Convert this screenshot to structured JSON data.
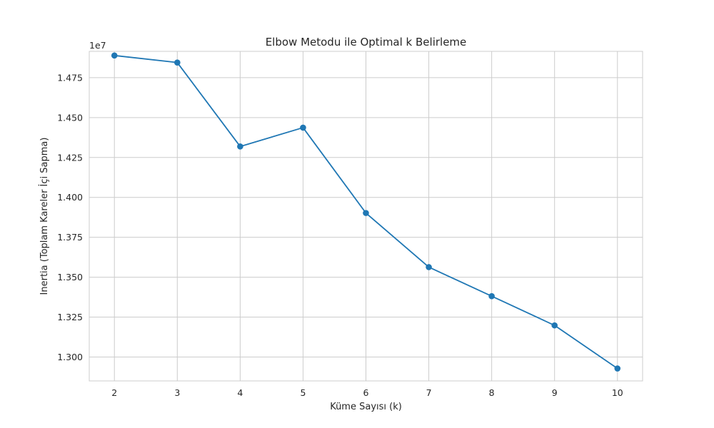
{
  "chart_data": {
    "type": "line",
    "title": "Elbow Metodu ile Optimal k Belirleme",
    "xlabel": "Küme Sayısı (k)",
    "ylabel": "Inertia (Toplam Kareler İçi Sapma)",
    "y_offset_label": "1e7",
    "x": [
      2,
      3,
      4,
      5,
      6,
      7,
      8,
      9,
      10
    ],
    "series": [
      {
        "values": [
          14889000,
          14845000,
          14319000,
          14437000,
          13902000,
          13563000,
          13381000,
          13198000,
          12928000
        ]
      }
    ],
    "xlim": [
      1.6,
      10.4
    ],
    "ylim": [
      12850000,
      14915000
    ],
    "x_ticks": [
      2,
      3,
      4,
      5,
      6,
      7,
      8,
      9,
      10
    ],
    "x_tick_labels": [
      "2",
      "3",
      "4",
      "5",
      "6",
      "7",
      "8",
      "9",
      "10"
    ],
    "y_ticks": [
      13000000,
      13250000,
      13500000,
      13750000,
      14000000,
      14250000,
      14500000,
      14750000
    ],
    "y_tick_labels": [
      "1.300",
      "1.325",
      "1.350",
      "1.375",
      "1.400",
      "1.425",
      "1.450",
      "1.475"
    ],
    "grid": true,
    "marker": "circle",
    "line_color": "#1f77b4",
    "grid_color": "#cccccc",
    "axes_edge_color": "#cccccc"
  }
}
